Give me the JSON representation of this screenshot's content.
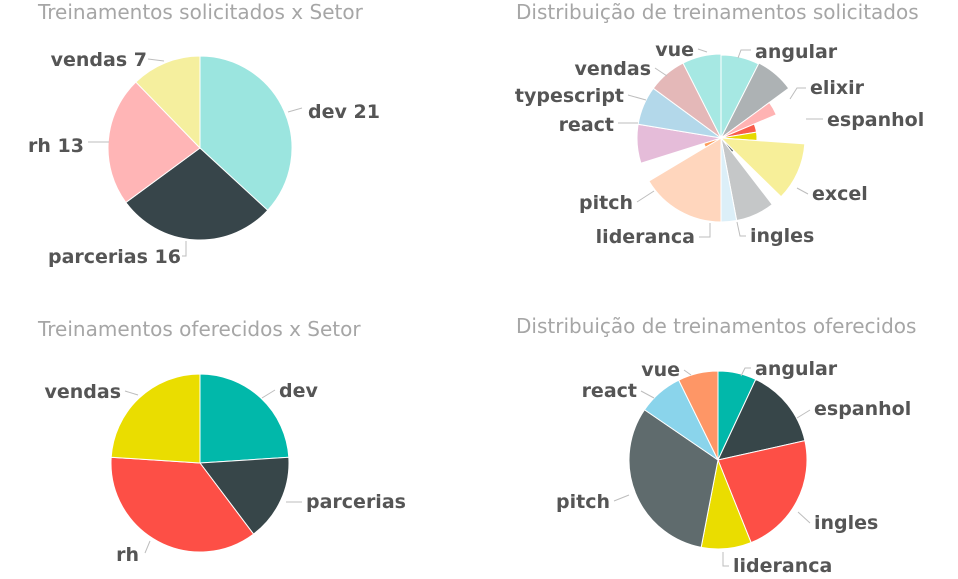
{
  "chart_data": [
    {
      "type": "pie",
      "title": "Treinamentos solicitados x Setor",
      "slices": [
        {
          "label": "dev 21",
          "value": 21,
          "color": "#9be5df"
        },
        {
          "label": "parcerias 16",
          "value": 16,
          "color": "#37454a"
        },
        {
          "label": "rh 13",
          "value": 13,
          "color": "#ffb5b6"
        },
        {
          "label": "vendas 7",
          "value": 7,
          "color": "#f5ef9e"
        }
      ]
    },
    {
      "type": "pie",
      "title": "Distribuição de treinamentos solicitados",
      "variant": "radius-scaled pie",
      "slices": [
        {
          "label": "angular",
          "value": 1,
          "color": "#a6e8e3"
        },
        {
          "label": "elixir",
          "value": 1,
          "color": "#adb2b4"
        },
        {
          "label": "espanhol",
          "value": 0.5,
          "color": "#ffb3b3"
        },
        {
          "label": "espanhol",
          "value": 0.5,
          "color": "#f95d4b"
        },
        {
          "label": "excel",
          "value": 0.5,
          "color": "#e6d900"
        },
        {
          "label": "excel",
          "value": 1.5,
          "color": "#f7ef99"
        },
        {
          "label": "ingles",
          "value": 0.3,
          "color": "#5b6367"
        },
        {
          "label": "ingles",
          "value": 1,
          "color": "#c5c7c8"
        },
        {
          "label": "lideranca",
          "value": 0.4,
          "color": "#dceff8"
        },
        {
          "label": "pitch",
          "value": 2.2,
          "color": "#ffd6bd"
        },
        {
          "label": "pitch",
          "value": 0.5,
          "color": "#fd9e5b"
        },
        {
          "label": "react",
          "value": 1,
          "color": "#e5bcd9"
        },
        {
          "label": "typescript",
          "value": 1,
          "color": "#b3d8ea"
        },
        {
          "label": "vendas",
          "value": 1,
          "color": "#e4b8b8"
        },
        {
          "label": "vue",
          "value": 1,
          "color": "#a6e8e3"
        }
      ]
    },
    {
      "type": "pie",
      "title": "Treinamentos oferecidos x Setor",
      "slices": [
        {
          "label": "dev",
          "value": 3.5,
          "color": "#01b8aa"
        },
        {
          "label": "parcerias",
          "value": 2.3,
          "color": "#374649"
        },
        {
          "label": "rh",
          "value": 5.3,
          "color": "#fd4f46"
        },
        {
          "label": "vendas",
          "value": 3.5,
          "color": "#eadd00"
        }
      ]
    },
    {
      "type": "pie",
      "title": "Distribuição de treinamentos oferecidos",
      "slices": [
        {
          "label": "angular",
          "value": 2.3,
          "color": "#01b8aa"
        },
        {
          "label": "espanhol",
          "value": 4.8,
          "color": "#374649"
        },
        {
          "label": "ingles",
          "value": 7.4,
          "color": "#fd4f46"
        },
        {
          "label": "lideranca",
          "value": 3.0,
          "color": "#eadd00"
        },
        {
          "label": "pitch",
          "value": 10.4,
          "color": "#5f6b6d"
        },
        {
          "label": "react",
          "value": 2.7,
          "color": "#8ad4eb"
        },
        {
          "label": "vue",
          "value": 2.4,
          "color": "#fe9666"
        }
      ]
    }
  ]
}
